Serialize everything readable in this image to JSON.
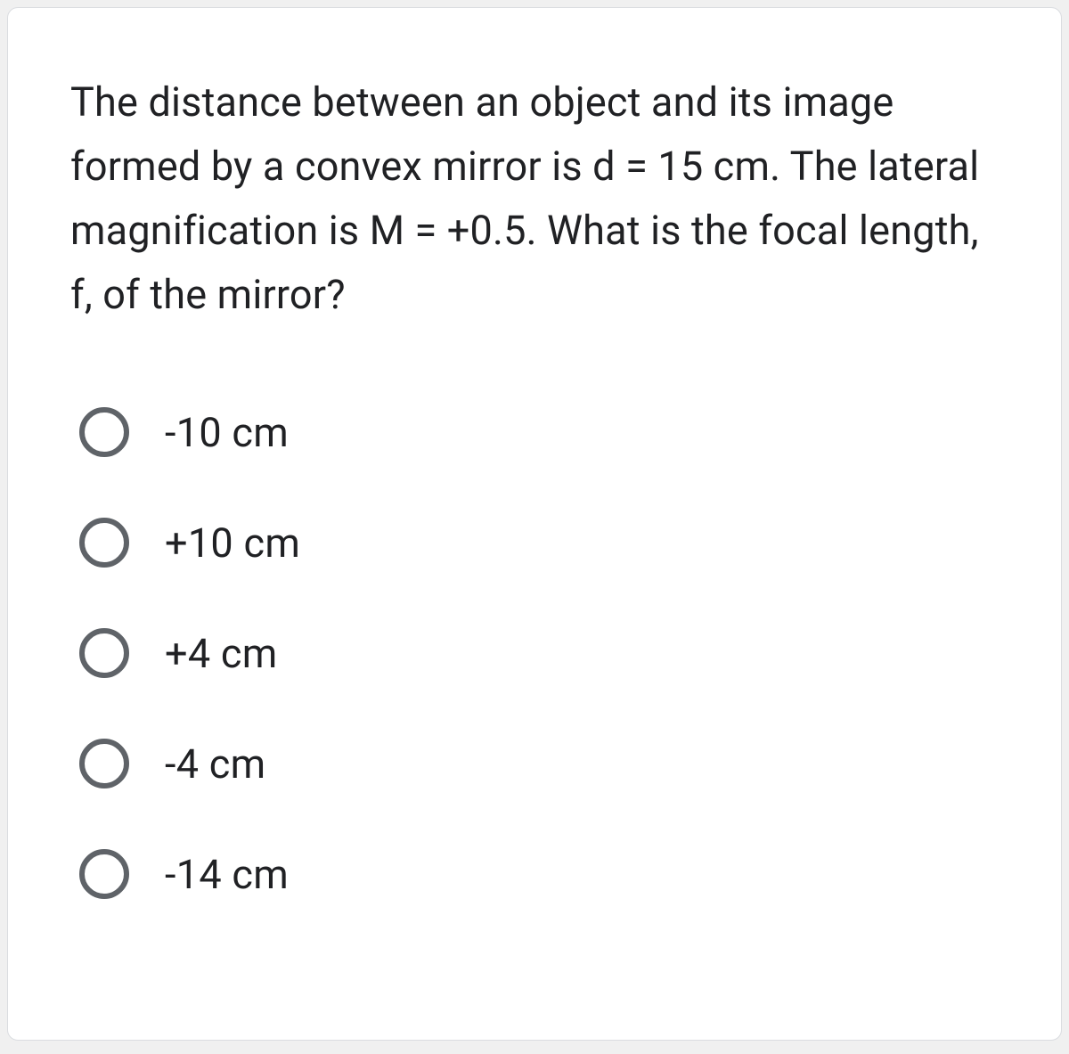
{
  "card": {
    "background_color": "#ffffff",
    "border_color": "#dadce0",
    "border_radius": 12
  },
  "question": {
    "text": "The distance between an object and its image formed by a convex mirror is d = 15 cm. The lateral magnification is M = +0.5. What is the focal length, f, of the mirror?",
    "font_size": 45,
    "color": "#202124"
  },
  "options": [
    {
      "label": "-10 cm",
      "selected": false
    },
    {
      "label": "+10 cm",
      "selected": false
    },
    {
      "label": "+4 cm",
      "selected": false
    },
    {
      "label": "-4 cm",
      "selected": false
    },
    {
      "label": "-14 cm",
      "selected": false
    }
  ],
  "radio_style": {
    "border_color": "#5f6368",
    "border_width": 6,
    "size": 56
  }
}
